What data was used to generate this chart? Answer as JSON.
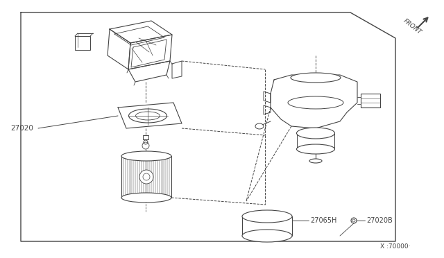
{
  "bg_color": "#ffffff",
  "line_color": "#444444",
  "label_27020": "27020",
  "label_27065H": "27065H",
  "label_27020B": "27020B",
  "label_x70000": "X :70000·",
  "label_front": "FRONT",
  "figsize": [
    6.4,
    3.72
  ],
  "dpi": 100
}
